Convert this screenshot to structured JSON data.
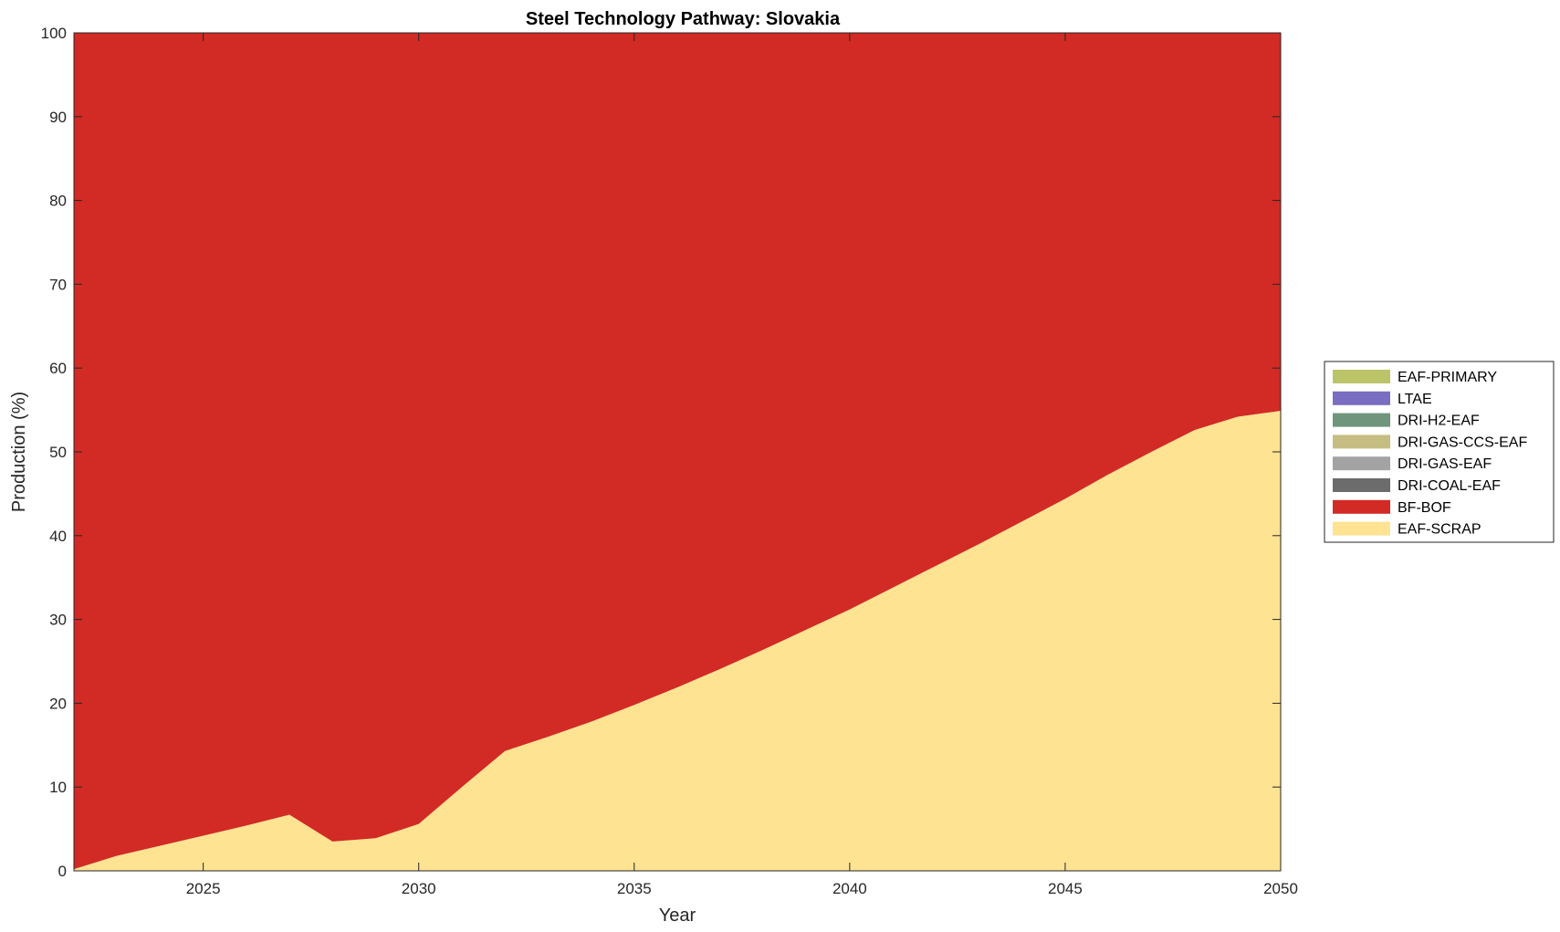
{
  "chart_data": {
    "type": "area",
    "stacked": true,
    "title": "Steel Technology Pathway: Slovakia",
    "xlabel": "Year",
    "ylabel": "Production (%)",
    "xlim": [
      2022,
      2050
    ],
    "ylim": [
      0,
      100
    ],
    "x_ticks": [
      2025,
      2030,
      2035,
      2040,
      2045,
      2050
    ],
    "y_ticks": [
      0,
      10,
      20,
      30,
      40,
      50,
      60,
      70,
      80,
      90,
      100
    ],
    "grid": false,
    "legend_position": "right",
    "x": [
      2022,
      2023,
      2024,
      2025,
      2026,
      2027,
      2028,
      2029,
      2030,
      2031,
      2032,
      2033,
      2034,
      2035,
      2036,
      2037,
      2038,
      2039,
      2040,
      2041,
      2042,
      2043,
      2044,
      2045,
      2046,
      2047,
      2048,
      2049,
      2050
    ],
    "series": [
      {
        "name": "EAF-SCRAP",
        "color": "#FDE392",
        "values": [
          0.2,
          1.8,
          3.0,
          4.2,
          5.4,
          6.7,
          3.5,
          3.9,
          5.6,
          10.0,
          14.3,
          16.0,
          17.8,
          19.8,
          21.9,
          24.1,
          26.4,
          28.8,
          31.2,
          33.8,
          36.4,
          39.0,
          41.7,
          44.4,
          47.3,
          50.0,
          52.6,
          54.2,
          54.9
        ]
      },
      {
        "name": "BF-BOF",
        "color": "#D22A24",
        "values": [
          99.8,
          98.2,
          97.0,
          95.8,
          94.6,
          93.3,
          96.5,
          96.1,
          94.4,
          90.0,
          85.7,
          84.0,
          82.2,
          80.2,
          78.1,
          75.9,
          73.6,
          71.2,
          68.8,
          66.2,
          63.6,
          61.0,
          58.3,
          55.6,
          52.7,
          50.0,
          47.4,
          45.8,
          45.1
        ]
      },
      {
        "name": "DRI-COAL-EAF",
        "color": "#6C6C6C",
        "values": [
          0,
          0,
          0,
          0,
          0,
          0,
          0,
          0,
          0,
          0,
          0,
          0,
          0,
          0,
          0,
          0,
          0,
          0,
          0,
          0,
          0,
          0,
          0,
          0,
          0,
          0,
          0,
          0,
          0
        ]
      },
      {
        "name": "DRI-GAS-EAF",
        "color": "#A3A3A3",
        "values": [
          0,
          0,
          0,
          0,
          0,
          0,
          0,
          0,
          0,
          0,
          0,
          0,
          0,
          0,
          0,
          0,
          0,
          0,
          0,
          0,
          0,
          0,
          0,
          0,
          0,
          0,
          0,
          0,
          0
        ]
      },
      {
        "name": "DRI-GAS-CCS-EAF",
        "color": "#C6BD82",
        "values": [
          0,
          0,
          0,
          0,
          0,
          0,
          0,
          0,
          0,
          0,
          0,
          0,
          0,
          0,
          0,
          0,
          0,
          0,
          0,
          0,
          0,
          0,
          0,
          0,
          0,
          0,
          0,
          0,
          0
        ]
      },
      {
        "name": "DRI-H2-EAF",
        "color": "#6F957D",
        "values": [
          0,
          0,
          0,
          0,
          0,
          0,
          0,
          0,
          0,
          0,
          0,
          0,
          0,
          0,
          0,
          0,
          0,
          0,
          0,
          0,
          0,
          0,
          0,
          0,
          0,
          0,
          0,
          0,
          0
        ]
      },
      {
        "name": "LTAE",
        "color": "#7A6EC2",
        "values": [
          0,
          0,
          0,
          0,
          0,
          0,
          0,
          0,
          0,
          0,
          0,
          0,
          0,
          0,
          0,
          0,
          0,
          0,
          0,
          0,
          0,
          0,
          0,
          0,
          0,
          0,
          0,
          0,
          0
        ]
      },
      {
        "name": "EAF-PRIMARY",
        "color": "#BCC46A",
        "values": [
          0,
          0,
          0,
          0,
          0,
          0,
          0,
          0,
          0,
          0,
          0,
          0,
          0,
          0,
          0,
          0,
          0,
          0,
          0,
          0,
          0,
          0,
          0,
          0,
          0,
          0,
          0,
          0,
          0
        ]
      }
    ],
    "legend_order": [
      "EAF-PRIMARY",
      "LTAE",
      "DRI-H2-EAF",
      "DRI-GAS-CCS-EAF",
      "DRI-GAS-EAF",
      "DRI-COAL-EAF",
      "BF-BOF",
      "EAF-SCRAP"
    ]
  }
}
